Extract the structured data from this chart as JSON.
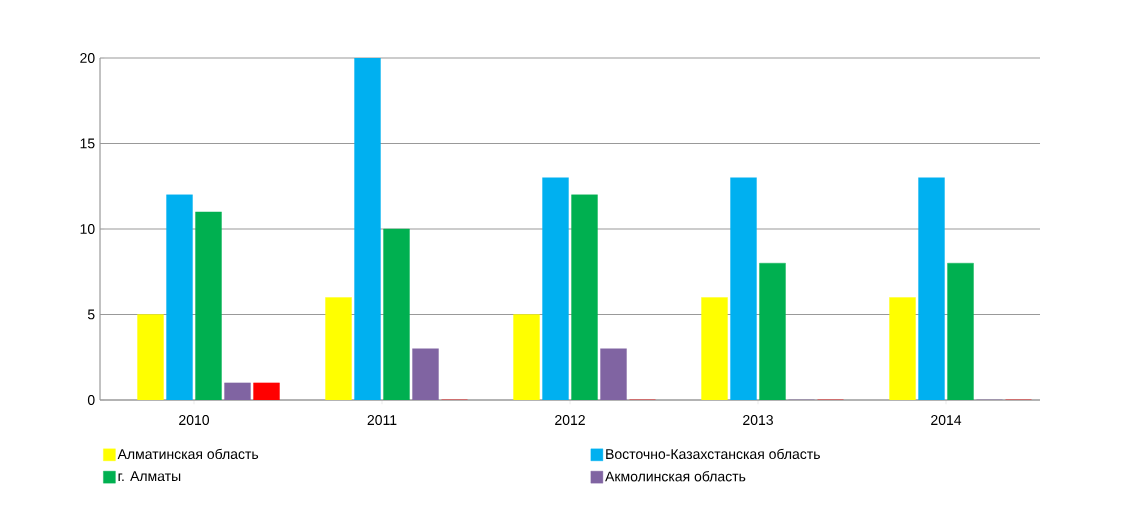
{
  "chart_data": {
    "type": "bar",
    "categories": [
      "2010",
      "2011",
      "2012",
      "2013",
      "2014"
    ],
    "series": [
      {
        "name": "Алматинская область",
        "color": "#ffff00",
        "values": [
          5,
          6,
          5,
          6,
          6
        ]
      },
      {
        "name": "Восточно-Казахстанская область",
        "color": "#00b0f0",
        "values": [
          12,
          20,
          13,
          13,
          13
        ]
      },
      {
        "name": "г. Алматы",
        "color": "#00b050",
        "values": [
          11,
          10,
          12,
          8,
          8
        ]
      },
      {
        "name": "Акмолинская область",
        "color": "#8064a2",
        "values": [
          1,
          3,
          3,
          0,
          0
        ]
      },
      {
        "color": "#ff0000",
        "values": [
          1,
          0,
          0,
          0,
          0
        ]
      }
    ],
    "ylim": [
      0,
      20
    ],
    "yticks": [
      0,
      5,
      10,
      15,
      20
    ],
    "grid": "y",
    "legend": "bottom"
  }
}
